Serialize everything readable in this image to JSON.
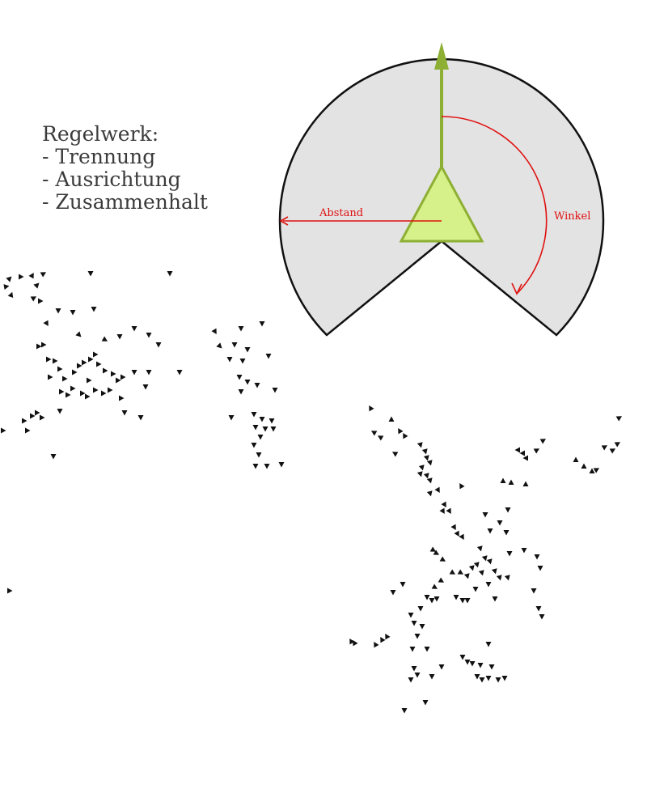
{
  "rules": {
    "heading": "Regelwerk:",
    "items": [
      "- Trennung",
      "- Ausrichtung",
      "- Zusammenhalt"
    ]
  },
  "diagram": {
    "label_distance": "Abstand",
    "label_angle": "Winkel",
    "colors": {
      "sector_fill": "#e3e3e3",
      "sector_stroke": "#111111",
      "boid_fill": "#d6f08a",
      "boid_stroke": "#8db034",
      "heading_arrow": "#8db034",
      "annotation": "#e01010"
    }
  },
  "flock": {
    "color": "#111111",
    "boids": [
      [
        12,
        344,
        -135
      ],
      [
        26,
        342,
        -90
      ],
      [
        40,
        340,
        -150
      ],
      [
        54,
        338,
        -120
      ],
      [
        8,
        354,
        -100
      ],
      [
        14,
        364,
        -160
      ],
      [
        46,
        352,
        -135
      ],
      [
        112,
        338,
        0
      ],
      [
        210,
        338,
        0
      ],
      [
        42,
        368,
        -120
      ],
      [
        50,
        372,
        -90
      ],
      [
        72,
        384,
        0
      ],
      [
        90,
        386,
        0
      ],
      [
        116,
        382,
        0
      ],
      [
        58,
        400,
        -30
      ],
      [
        98,
        414,
        -45
      ],
      [
        130,
        420,
        -60
      ],
      [
        148,
        416,
        0
      ],
      [
        166,
        406,
        0
      ],
      [
        184,
        414,
        0
      ],
      [
        196,
        426,
        0
      ],
      [
        48,
        428,
        -90
      ],
      [
        54,
        426,
        -90
      ],
      [
        60,
        444,
        -90
      ],
      [
        68,
        446,
        -90
      ],
      [
        74,
        456,
        -90
      ],
      [
        62,
        466,
        -90
      ],
      [
        80,
        468,
        -90
      ],
      [
        92,
        460,
        -90
      ],
      [
        98,
        452,
        -90
      ],
      [
        104,
        448,
        -90
      ],
      [
        112,
        444,
        -90
      ],
      [
        118,
        438,
        -90
      ],
      [
        122,
        450,
        -90
      ],
      [
        130,
        458,
        -90
      ],
      [
        140,
        462,
        -90
      ],
      [
        146,
        470,
        -90
      ],
      [
        152,
        466,
        -90
      ],
      [
        110,
        470,
        -90
      ],
      [
        118,
        482,
        -90
      ],
      [
        128,
        486,
        -90
      ],
      [
        136,
        482,
        -90
      ],
      [
        76,
        484,
        -90
      ],
      [
        84,
        488,
        -90
      ],
      [
        90,
        480,
        -90
      ],
      [
        102,
        486,
        -90
      ],
      [
        108,
        490,
        -90
      ],
      [
        150,
        492,
        -90
      ],
      [
        166,
        460,
        0
      ],
      [
        180,
        478,
        0
      ],
      [
        184,
        460,
        0
      ],
      [
        222,
        460,
        0
      ],
      [
        46,
        510,
        -90
      ],
      [
        52,
        516,
        -90
      ],
      [
        40,
        514,
        -90
      ],
      [
        30,
        520,
        -90
      ],
      [
        34,
        532,
        -90
      ],
      [
        74,
        508,
        0
      ],
      [
        154,
        510,
        0
      ],
      [
        174,
        516,
        0
      ],
      [
        66,
        564,
        0
      ],
      [
        4,
        532,
        -90
      ],
      [
        12,
        730,
        -90
      ],
      [
        266,
        410,
        -30
      ],
      [
        272,
        428,
        -45
      ],
      [
        298,
        406,
        0
      ],
      [
        324,
        400,
        0
      ],
      [
        290,
        426,
        0
      ],
      [
        306,
        432,
        0
      ],
      [
        332,
        440,
        0
      ],
      [
        284,
        444,
        0
      ],
      [
        300,
        446,
        0
      ],
      [
        296,
        466,
        0
      ],
      [
        306,
        472,
        0
      ],
      [
        298,
        484,
        0
      ],
      [
        318,
        476,
        0
      ],
      [
        340,
        482,
        0
      ],
      [
        286,
        516,
        0
      ],
      [
        314,
        512,
        0
      ],
      [
        324,
        518,
        0
      ],
      [
        336,
        520,
        0
      ],
      [
        316,
        528,
        0
      ],
      [
        328,
        530,
        0
      ],
      [
        338,
        530,
        0
      ],
      [
        322,
        540,
        0
      ],
      [
        314,
        550,
        0
      ],
      [
        320,
        562,
        0
      ],
      [
        316,
        576,
        0
      ],
      [
        330,
        576,
        0
      ],
      [
        348,
        574,
        0
      ],
      [
        458,
        504,
        150
      ],
      [
        462,
        534,
        120
      ],
      [
        470,
        540,
        120
      ],
      [
        484,
        518,
        180
      ],
      [
        494,
        532,
        150
      ],
      [
        500,
        538,
        150
      ],
      [
        520,
        550,
        -15
      ],
      [
        526,
        558,
        -15
      ],
      [
        528,
        566,
        -15
      ],
      [
        532,
        572,
        -15
      ],
      [
        522,
        578,
        -15
      ],
      [
        520,
        586,
        -15
      ],
      [
        528,
        588,
        -15
      ],
      [
        532,
        594,
        -15
      ],
      [
        488,
        560,
        120
      ],
      [
        570,
        600,
        150
      ],
      [
        532,
        610,
        -15
      ],
      [
        542,
        606,
        -30
      ],
      [
        550,
        624,
        -30
      ],
      [
        548,
        632,
        -30
      ],
      [
        556,
        632,
        -30
      ],
      [
        562,
        652,
        -30
      ],
      [
        566,
        660,
        -30
      ],
      [
        572,
        664,
        -30
      ],
      [
        600,
        636,
        0
      ],
      [
        618,
        646,
        0
      ],
      [
        628,
        630,
        0
      ],
      [
        606,
        656,
        0
      ],
      [
        626,
        658,
        0
      ],
      [
        594,
        678,
        -15
      ],
      [
        600,
        690,
        -15
      ],
      [
        606,
        694,
        -15
      ],
      [
        590,
        698,
        -15
      ],
      [
        584,
        702,
        -15
      ],
      [
        578,
        712,
        -15
      ],
      [
        596,
        708,
        -15
      ],
      [
        612,
        706,
        -15
      ],
      [
        618,
        714,
        -15
      ],
      [
        628,
        714,
        -15
      ],
      [
        630,
        684,
        0
      ],
      [
        648,
        680,
        0
      ],
      [
        664,
        688,
        0
      ],
      [
        668,
        702,
        0
      ],
      [
        640,
        556,
        90
      ],
      [
        646,
        560,
        90
      ],
      [
        650,
        566,
        90
      ],
      [
        664,
        556,
        -120
      ],
      [
        672,
        544,
        -120
      ],
      [
        622,
        594,
        180
      ],
      [
        632,
        596,
        180
      ],
      [
        650,
        598,
        180
      ],
      [
        712,
        568,
        180
      ],
      [
        722,
        576,
        180
      ],
      [
        732,
        582,
        180
      ],
      [
        738,
        580,
        -120
      ],
      [
        748,
        552,
        -120
      ],
      [
        758,
        556,
        -120
      ],
      [
        764,
        548,
        -120
      ],
      [
        766,
        516,
        -120
      ],
      [
        536,
        680,
        -60
      ],
      [
        540,
        684,
        -60
      ],
      [
        548,
        692,
        -60
      ],
      [
        560,
        708,
        -60
      ],
      [
        570,
        708,
        -60
      ],
      [
        546,
        718,
        -60
      ],
      [
        538,
        726,
        -60
      ],
      [
        528,
        738,
        0
      ],
      [
        534,
        742,
        0
      ],
      [
        540,
        740,
        0
      ],
      [
        564,
        738,
        0
      ],
      [
        572,
        742,
        0
      ],
      [
        578,
        742,
        0
      ],
      [
        588,
        728,
        0
      ],
      [
        604,
        722,
        0
      ],
      [
        612,
        740,
        0
      ],
      [
        660,
        730,
        0
      ],
      [
        666,
        752,
        0
      ],
      [
        670,
        762,
        0
      ],
      [
        498,
        722,
        0
      ],
      [
        486,
        732,
        0
      ],
      [
        520,
        752,
        0
      ],
      [
        508,
        760,
        0
      ],
      [
        512,
        770,
        0
      ],
      [
        522,
        774,
        0
      ],
      [
        516,
        786,
        0
      ],
      [
        510,
        802,
        0
      ],
      [
        528,
        802,
        0
      ],
      [
        434,
        792,
        150
      ],
      [
        438,
        794,
        150
      ],
      [
        464,
        796,
        150
      ],
      [
        478,
        786,
        150
      ],
      [
        472,
        790,
        150
      ],
      [
        572,
        812,
        0
      ],
      [
        578,
        818,
        0
      ],
      [
        584,
        820,
        0
      ],
      [
        594,
        822,
        0
      ],
      [
        604,
        796,
        0
      ],
      [
        608,
        824,
        0
      ],
      [
        512,
        826,
        0
      ],
      [
        516,
        834,
        0
      ],
      [
        508,
        840,
        0
      ],
      [
        546,
        824,
        0
      ],
      [
        534,
        836,
        0
      ],
      [
        590,
        836,
        0
      ],
      [
        596,
        840,
        0
      ],
      [
        604,
        838,
        0
      ],
      [
        616,
        840,
        0
      ],
      [
        624,
        838,
        0
      ],
      [
        526,
        868,
        0
      ],
      [
        500,
        878,
        0
      ]
    ]
  }
}
